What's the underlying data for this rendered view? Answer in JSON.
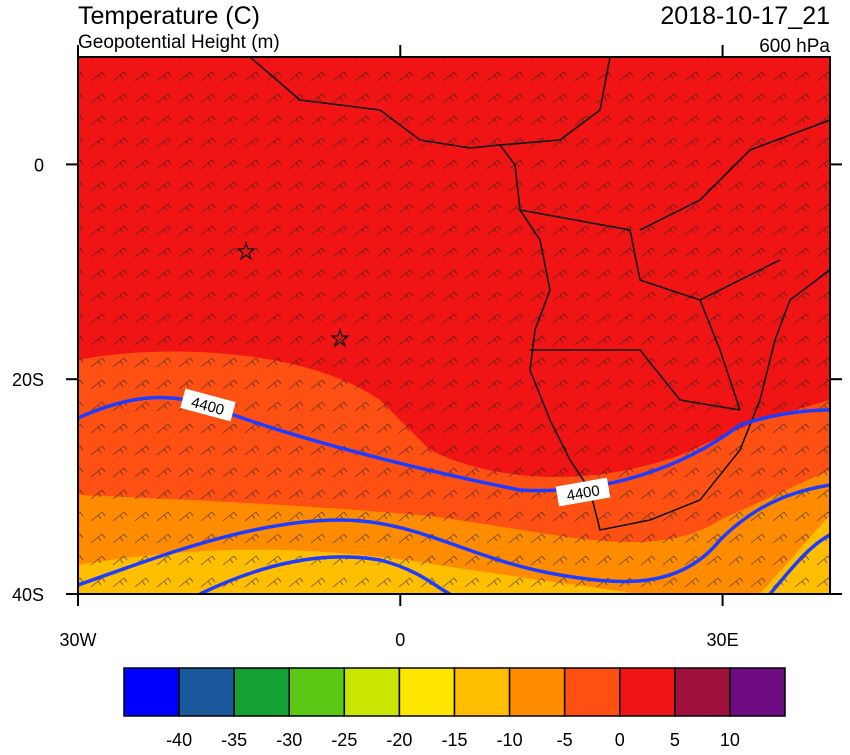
{
  "header": {
    "title": "Temperature (C)",
    "subtitle": "Geopotential Height (m)",
    "valid_time": "2018-10-17_21",
    "level": "600 hPa"
  },
  "map": {
    "lat_range": [
      -40,
      10
    ],
    "lon_range": [
      -30,
      40
    ],
    "lat_ticks": [
      0,
      {
        "value": -20,
        "label": "20S"
      },
      {
        "value": -40,
        "label": "40S"
      }
    ],
    "lon_ticks": [
      {
        "value": -30,
        "label": "30W"
      },
      0,
      {
        "value": 30,
        "label": "30E"
      }
    ],
    "contour_labels": [
      4400,
      4400
    ]
  },
  "colorbar": {
    "levels": [
      -40,
      -35,
      -30,
      -25,
      -20,
      -15,
      -10,
      -5,
      0,
      5,
      10
    ],
    "colors": [
      "#0000ff",
      "#1a5a9c",
      "#14a032",
      "#5ac814",
      "#c8e600",
      "#ffe600",
      "#ffbe00",
      "#ff8c00",
      "#ff5014",
      "#f01414",
      "#a0103c",
      "#6e0a82"
    ]
  }
}
